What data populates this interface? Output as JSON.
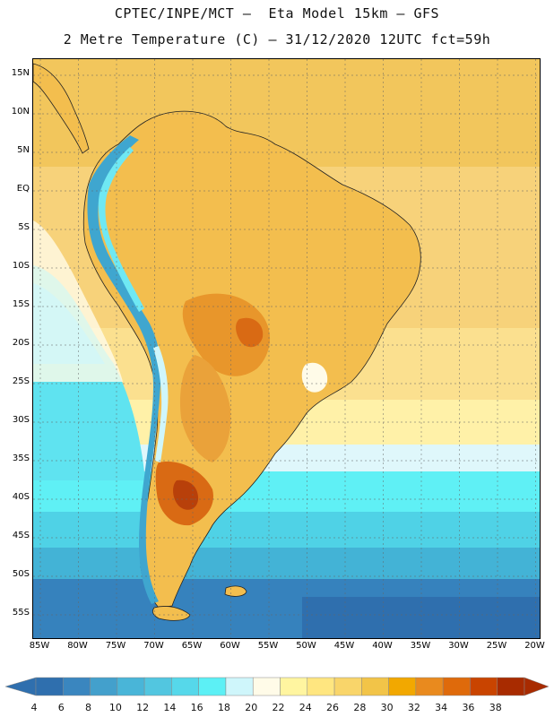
{
  "header": {
    "line1": "CPTEC/INPE/MCT –  Eta Model 15km – GFS",
    "line2": "2 Metre Temperature (C) – 31/12/2020 12UTC fct=59h"
  },
  "map": {
    "lat_labels": [
      "15N",
      "10N",
      "5N",
      "EQ",
      "5S",
      "10S",
      "15S",
      "20S",
      "25S",
      "30S",
      "35S",
      "40S",
      "45S",
      "50S",
      "55S"
    ],
    "lon_labels": [
      "85W",
      "80W",
      "75W",
      "70W",
      "65W",
      "60W",
      "55W",
      "50W",
      "45W",
      "40W",
      "35W",
      "30W",
      "25W",
      "20W"
    ]
  },
  "colorbar": {
    "labels": [
      "4",
      "6",
      "8",
      "10",
      "12",
      "14",
      "16",
      "18",
      "20",
      "22",
      "24",
      "26",
      "28",
      "30",
      "32",
      "34",
      "36",
      "38"
    ],
    "colors": [
      "#2f6fae",
      "#3a86bf",
      "#43a0cc",
      "#49b5d8",
      "#52c6e0",
      "#56d8ea",
      "#5cf0f5",
      "#cff6fb",
      "#fffbe8",
      "#fff5a0",
      "#ffe680",
      "#f9d56a",
      "#f2c448",
      "#f2a800",
      "#e98a1e",
      "#df6a0b",
      "#c94400",
      "#a82b00"
    ]
  }
}
